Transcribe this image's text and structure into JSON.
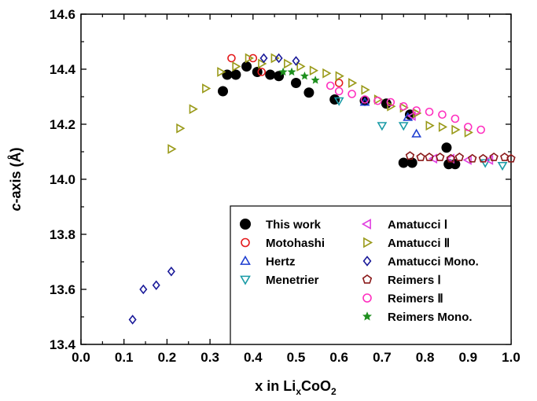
{
  "chart_data": {
    "type": "scatter",
    "title": "",
    "xlabel": "x in LixCoO2",
    "xlabel_parts": {
      "pre": "x in Li",
      "sub1": "x",
      "mid": "CoO",
      "sub2": "2"
    },
    "ylabel": "c-axis (Å)",
    "ylabel_parts": {
      "italic": "c",
      "rest": "-axis (Å)"
    },
    "xlim": [
      0.0,
      1.0
    ],
    "ylim": [
      13.4,
      14.6
    ],
    "xticks": [
      "0.0",
      "0.1",
      "0.2",
      "0.3",
      "0.4",
      "0.5",
      "0.6",
      "0.7",
      "0.8",
      "0.9",
      "1.0"
    ],
    "yticks": [
      "13.4",
      "13.6",
      "13.8",
      "14.0",
      "14.2",
      "14.4",
      "14.6"
    ],
    "grid": false,
    "legend_position": "bottom-right",
    "series": [
      {
        "name": "This work",
        "marker": "circle-filled",
        "color": "#000000",
        "x": [
          0.33,
          0.34,
          0.36,
          0.385,
          0.41,
          0.44,
          0.46,
          0.5,
          0.53,
          0.59,
          0.66,
          0.71,
          0.75,
          0.765,
          0.77,
          0.85,
          0.855,
          0.87
        ],
        "y": [
          14.32,
          14.38,
          14.38,
          14.41,
          14.39,
          14.38,
          14.375,
          14.35,
          14.315,
          14.29,
          14.285,
          14.275,
          14.06,
          14.235,
          14.06,
          14.115,
          14.055,
          14.055
        ]
      },
      {
        "name": "Motohashi",
        "marker": "circle-open",
        "color": "#e41a1c",
        "x": [
          0.35,
          0.4,
          0.42,
          0.6
        ],
        "y": [
          14.44,
          14.44,
          14.39,
          14.35
        ]
      },
      {
        "name": "Hertz",
        "marker": "triangle-up-open",
        "color": "#1f3fd1",
        "x": [
          0.66,
          0.76,
          0.78
        ],
        "y": [
          14.28,
          14.225,
          14.165
        ]
      },
      {
        "name": "Menetrier",
        "marker": "triangle-down-open",
        "color": "#1a9ba6",
        "x": [
          0.6,
          0.7,
          0.75,
          0.94,
          0.98
        ],
        "y": [
          14.285,
          14.195,
          14.195,
          14.06,
          14.05
        ]
      },
      {
        "name": "Amatucci Ⅰ",
        "marker": "triangle-left-open",
        "color": "#e040e0",
        "x": [
          0.77,
          0.82,
          0.86,
          0.9,
          0.95
        ],
        "y": [
          14.23,
          14.075,
          14.075,
          14.07,
          14.07
        ]
      },
      {
        "name": "Amatucci Ⅱ",
        "marker": "triangle-right-open",
        "color": "#9a9a1a",
        "x": [
          0.21,
          0.23,
          0.26,
          0.29,
          0.325,
          0.36,
          0.39,
          0.42,
          0.45,
          0.48,
          0.51,
          0.54,
          0.57,
          0.6,
          0.63,
          0.66,
          0.69,
          0.72,
          0.75,
          0.78,
          0.81,
          0.84,
          0.87,
          0.9
        ],
        "y": [
          14.11,
          14.185,
          14.255,
          14.33,
          14.39,
          14.41,
          14.44,
          14.42,
          14.44,
          14.42,
          14.41,
          14.395,
          14.385,
          14.375,
          14.35,
          14.325,
          14.29,
          14.265,
          14.26,
          14.24,
          14.195,
          14.19,
          14.18,
          14.17
        ]
      },
      {
        "name": "Amatucci Mono.",
        "marker": "diamond-open",
        "color": "#1a1a99",
        "x": [
          0.12,
          0.145,
          0.175,
          0.21,
          0.425,
          0.46,
          0.5
        ],
        "y": [
          13.49,
          13.6,
          13.615,
          13.665,
          14.44,
          14.44,
          14.43
        ]
      },
      {
        "name": "Reimers Ⅰ",
        "marker": "pentagon-open",
        "color": "#8b1a1a",
        "x": [
          0.765,
          0.79,
          0.81,
          0.835,
          0.86,
          0.88,
          0.91,
          0.935,
          0.96,
          0.985,
          1.0
        ],
        "y": [
          14.085,
          14.08,
          14.08,
          14.08,
          14.075,
          14.08,
          14.075,
          14.075,
          14.08,
          14.08,
          14.075
        ]
      },
      {
        "name": "Reimers Ⅱ",
        "marker": "circle-open",
        "color": "#ff2fbf",
        "x": [
          0.58,
          0.6,
          0.63,
          0.66,
          0.69,
          0.72,
          0.75,
          0.78,
          0.81,
          0.84,
          0.87,
          0.9,
          0.93
        ],
        "y": [
          14.34,
          14.32,
          14.31,
          14.29,
          14.285,
          14.28,
          14.265,
          14.25,
          14.245,
          14.235,
          14.22,
          14.19,
          14.18
        ]
      },
      {
        "name": "Reimers Mono.",
        "marker": "star-filled",
        "color": "#1e8f1e",
        "x": [
          0.47,
          0.49,
          0.52,
          0.545
        ],
        "y": [
          14.39,
          14.39,
          14.375,
          14.36
        ]
      }
    ]
  }
}
